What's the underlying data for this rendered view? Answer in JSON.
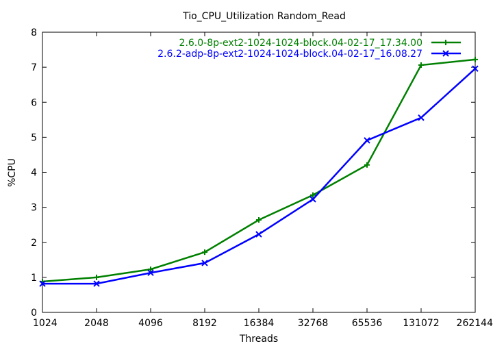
{
  "chart_data": {
    "type": "line",
    "title": "Tio_CPU_Utilization Random_Read",
    "xlabel": "Threads",
    "ylabel": "%CPU",
    "categories": [
      "1024",
      "2048",
      "4096",
      "8192",
      "16384",
      "32768",
      "65536",
      "131072",
      "262144"
    ],
    "ylim": [
      0,
      8
    ],
    "yticks": [
      0,
      1,
      2,
      3,
      4,
      5,
      6,
      7,
      8
    ],
    "grid": false,
    "legend_position": "top-right",
    "series": [
      {
        "name": "2.6.0-8p-ext2-1024-1024-block.04-02-17_17.34.00",
        "color": "#008000",
        "marker": "plus",
        "values": [
          0.88,
          1.0,
          1.23,
          1.72,
          2.64,
          3.35,
          4.21,
          7.06,
          7.22
        ]
      },
      {
        "name": "2.6.2-adp-8p-ext2-1024-1024-block.04-02-17_16.08.27",
        "color": "#0000ff",
        "marker": "cross",
        "values": [
          0.82,
          0.82,
          1.13,
          1.41,
          2.23,
          3.23,
          4.91,
          5.56,
          6.96
        ]
      }
    ]
  }
}
